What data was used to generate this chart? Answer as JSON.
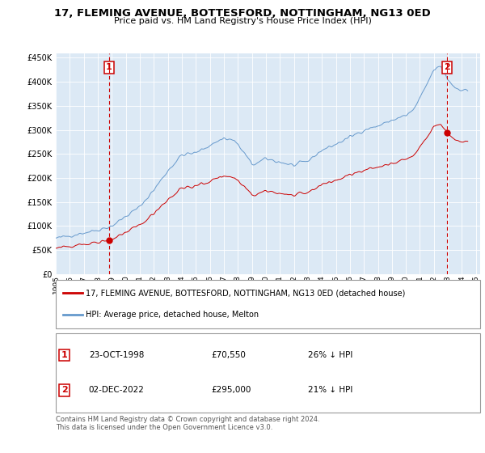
{
  "title": "17, FLEMING AVENUE, BOTTESFORD, NOTTINGHAM, NG13 0ED",
  "subtitle": "Price paid vs. HM Land Registry's House Price Index (HPI)",
  "ytick_values": [
    0,
    50000,
    100000,
    150000,
    200000,
    250000,
    300000,
    350000,
    400000,
    450000
  ],
  "ylim": [
    0,
    460000
  ],
  "background_color": "#ffffff",
  "chart_bg_color": "#dce9f5",
  "grid_color": "#ffffff",
  "sale1_date": 1998.81,
  "sale1_price": 70550,
  "sale2_date": 2022.92,
  "sale2_price": 295000,
  "legend_property": "17, FLEMING AVENUE, BOTTESFORD, NOTTINGHAM, NG13 0ED (detached house)",
  "legend_hpi": "HPI: Average price, detached house, Melton",
  "annotation1_date": "23-OCT-1998",
  "annotation1_price": "£70,550",
  "annotation1_hpi": "26% ↓ HPI",
  "annotation2_date": "02-DEC-2022",
  "annotation2_price": "£295,000",
  "annotation2_hpi": "21% ↓ HPI",
  "footer": "Contains HM Land Registry data © Crown copyright and database right 2024.\nThis data is licensed under the Open Government Licence v3.0.",
  "property_line_color": "#cc0000",
  "hpi_line_color": "#6699cc",
  "vline_color": "#cc0000",
  "xlim_left": 1995.0,
  "xlim_right": 2025.3
}
